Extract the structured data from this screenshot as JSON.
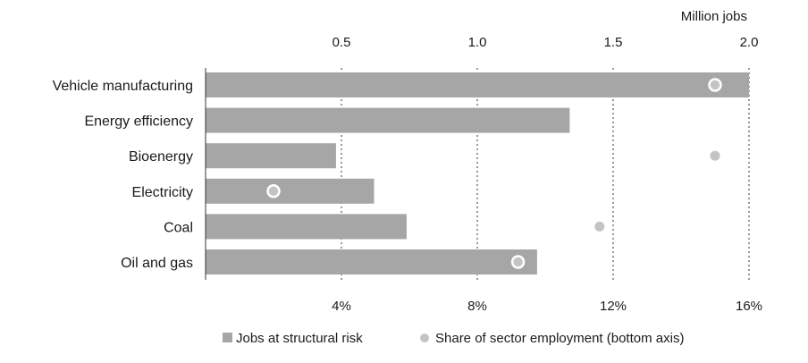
{
  "chart_data": {
    "type": "bar",
    "orientation": "horizontal",
    "categories": [
      "Vehicle manufacturing",
      "Energy efficiency",
      "Bioenergy",
      "Electricity",
      "Coal",
      "Oil and gas"
    ],
    "top_axis": {
      "label": "Million jobs",
      "range": [
        0,
        2.0
      ],
      "ticks": [
        "0.5",
        "1.0",
        "1.5",
        "2.0"
      ],
      "tick_values": [
        0.5,
        1.0,
        1.5,
        2.0
      ]
    },
    "bottom_axis": {
      "range": [
        0,
        16
      ],
      "ticks": [
        "4%",
        "8%",
        "12%",
        "16%"
      ],
      "tick_values": [
        4,
        8,
        12,
        16
      ]
    },
    "gridlines": "vertical dotted",
    "series": [
      {
        "name": "Jobs at structural risk",
        "axis": "top",
        "values": [
          2.0,
          1.34,
          0.48,
          0.62,
          0.74,
          1.22
        ]
      },
      {
        "name": "Share of sector employment (bottom axis)",
        "axis": "bottom",
        "values": [
          15.0,
          null,
          15.0,
          2.0,
          11.6,
          9.2
        ]
      }
    ],
    "legend": {
      "position": "bottom",
      "items": [
        "Jobs at structural risk",
        "Share of sector employment (bottom axis)"
      ]
    },
    "colors": {
      "bar": "#a6a6a6",
      "dot": "#c4c4c4",
      "dot_outline": "#ffffff",
      "grid": "#555555",
      "axis": "#333333"
    }
  }
}
